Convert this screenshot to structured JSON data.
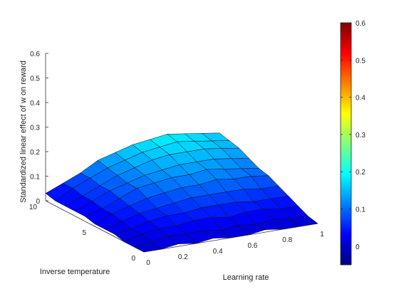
{
  "chart_data": {
    "type": "surface",
    "title": "",
    "zlabel": "Standardized linear effect of w on reward",
    "xlabel": "Learning rate",
    "ylabel": "Inverse temperature",
    "x_values": [
      0,
      0.1,
      0.2,
      0.3,
      0.4,
      0.5,
      0.6,
      0.7,
      0.8,
      0.9,
      1.0
    ],
    "y_values": [
      0,
      1,
      2,
      3,
      4,
      5,
      6,
      7,
      8,
      9,
      10
    ],
    "zlim": [
      0,
      0.6
    ],
    "z_ticks": [
      "0",
      "0.1",
      "0.2",
      "0.3",
      "0.4",
      "0.5",
      "0.6"
    ],
    "x_ticks": [
      "0",
      "0.2",
      "0.4",
      "0.6",
      "0.8",
      "1"
    ],
    "y_ticks": [
      "0",
      "5",
      "10"
    ],
    "z_grid_note": "rows indexed by inverse temperature (0..10), columns by learning rate (0..1)",
    "z": [
      [
        0.0,
        0.0,
        0.01,
        0.0,
        0.01,
        0.0,
        0.0,
        0.01,
        0.0,
        0.0,
        0.0
      ],
      [
        0.0,
        0.01,
        0.02,
        0.02,
        0.02,
        0.01,
        0.02,
        0.01,
        0.02,
        0.01,
        0.01
      ],
      [
        0.0,
        0.02,
        0.03,
        0.03,
        0.04,
        0.04,
        0.03,
        0.04,
        0.04,
        0.03,
        0.03
      ],
      [
        0.01,
        0.02,
        0.04,
        0.05,
        0.05,
        0.06,
        0.06,
        0.06,
        0.05,
        0.05,
        0.05
      ],
      [
        0.01,
        0.03,
        0.05,
        0.06,
        0.07,
        0.08,
        0.08,
        0.08,
        0.08,
        0.07,
        0.07
      ],
      [
        0.01,
        0.04,
        0.06,
        0.08,
        0.09,
        0.1,
        0.1,
        0.11,
        0.1,
        0.1,
        0.09
      ],
      [
        0.02,
        0.04,
        0.07,
        0.1,
        0.11,
        0.12,
        0.12,
        0.13,
        0.12,
        0.11,
        0.1
      ],
      [
        0.02,
        0.05,
        0.08,
        0.1,
        0.12,
        0.13,
        0.14,
        0.14,
        0.14,
        0.13,
        0.12
      ],
      [
        0.02,
        0.05,
        0.08,
        0.11,
        0.13,
        0.15,
        0.16,
        0.16,
        0.16,
        0.15,
        0.14
      ],
      [
        0.02,
        0.06,
        0.09,
        0.12,
        0.14,
        0.16,
        0.17,
        0.18,
        0.17,
        0.16,
        0.15
      ],
      [
        0.03,
        0.06,
        0.09,
        0.13,
        0.15,
        0.17,
        0.18,
        0.19,
        0.18,
        0.17,
        0.16
      ]
    ],
    "colormap": "jet",
    "colorbar": {
      "range": [
        -0.05,
        0.6
      ],
      "ticks": [
        "0",
        "0.1",
        "0.2",
        "0.3",
        "0.4",
        "0.5",
        "0.6"
      ],
      "colors": [
        "#00007f",
        "#0000ff",
        "#007fff",
        "#00ffff",
        "#7fff7f",
        "#ffff00",
        "#ff7f00",
        "#ff0000",
        "#7f0000"
      ]
    },
    "grid": false,
    "legend": "none"
  }
}
